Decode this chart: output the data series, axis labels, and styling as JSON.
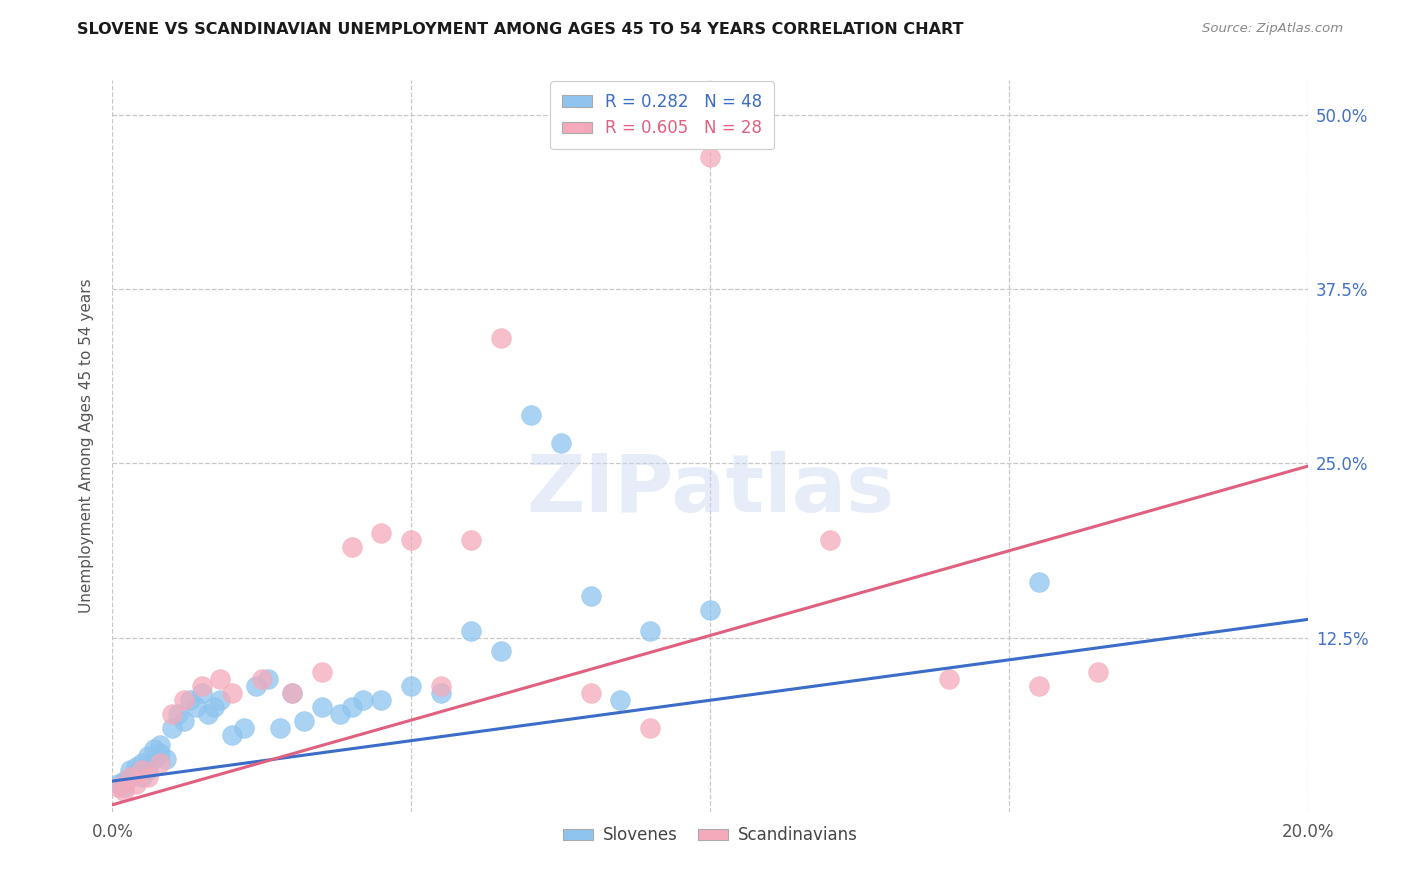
{
  "title": "SLOVENE VS SCANDINAVIAN UNEMPLOYMENT AMONG AGES 45 TO 54 YEARS CORRELATION CHART",
  "source": "Source: ZipAtlas.com",
  "ylabel": "Unemployment Among Ages 45 to 54 years",
  "xlim": [
    0.0,
    0.2
  ],
  "ylim": [
    0.0,
    0.525
  ],
  "ytick_vals": [
    0.125,
    0.25,
    0.375,
    0.5
  ],
  "ytick_labels": [
    "12.5%",
    "25.0%",
    "37.5%",
    "50.0%"
  ],
  "background_color": "#ffffff",
  "slovene_color": "#8EC4EE",
  "scandinavian_color": "#F5AABB",
  "slovene_line_color": "#3B6CC7",
  "scandinavian_line_color": "#E06080",
  "grid_color": "#c8c8c8",
  "slovene_x": [
    0.001,
    0.002,
    0.002,
    0.003,
    0.003,
    0.004,
    0.004,
    0.005,
    0.005,
    0.006,
    0.006,
    0.007,
    0.007,
    0.008,
    0.008,
    0.009,
    0.01,
    0.011,
    0.012,
    0.013,
    0.014,
    0.015,
    0.016,
    0.017,
    0.018,
    0.02,
    0.022,
    0.024,
    0.026,
    0.028,
    0.03,
    0.032,
    0.035,
    0.038,
    0.04,
    0.042,
    0.045,
    0.05,
    0.055,
    0.06,
    0.065,
    0.07,
    0.075,
    0.08,
    0.085,
    0.09,
    0.1,
    0.155
  ],
  "slovene_y": [
    0.02,
    0.022,
    0.018,
    0.025,
    0.03,
    0.028,
    0.032,
    0.035,
    0.025,
    0.04,
    0.03,
    0.038,
    0.045,
    0.042,
    0.048,
    0.038,
    0.06,
    0.07,
    0.065,
    0.08,
    0.075,
    0.085,
    0.07,
    0.075,
    0.08,
    0.055,
    0.06,
    0.09,
    0.095,
    0.06,
    0.085,
    0.065,
    0.075,
    0.07,
    0.075,
    0.08,
    0.08,
    0.09,
    0.085,
    0.13,
    0.115,
    0.285,
    0.265,
    0.155,
    0.08,
    0.13,
    0.145,
    0.165
  ],
  "scandinavian_x": [
    0.001,
    0.002,
    0.003,
    0.004,
    0.005,
    0.006,
    0.008,
    0.01,
    0.012,
    0.015,
    0.018,
    0.02,
    0.025,
    0.03,
    0.035,
    0.04,
    0.045,
    0.05,
    0.055,
    0.06,
    0.065,
    0.08,
    0.09,
    0.1,
    0.12,
    0.14,
    0.155,
    0.165
  ],
  "scandinavian_y": [
    0.018,
    0.015,
    0.025,
    0.02,
    0.03,
    0.025,
    0.035,
    0.07,
    0.08,
    0.09,
    0.095,
    0.085,
    0.095,
    0.085,
    0.1,
    0.19,
    0.2,
    0.195,
    0.09,
    0.195,
    0.34,
    0.085,
    0.06,
    0.47,
    0.195,
    0.095,
    0.09,
    0.1
  ],
  "slovene_trend_x": [
    0.0,
    0.2
  ],
  "slovene_trend_y": [
    0.022,
    0.138
  ],
  "scandinavian_trend_x": [
    0.0,
    0.2
  ],
  "scandinavian_trend_y": [
    0.005,
    0.248
  ]
}
